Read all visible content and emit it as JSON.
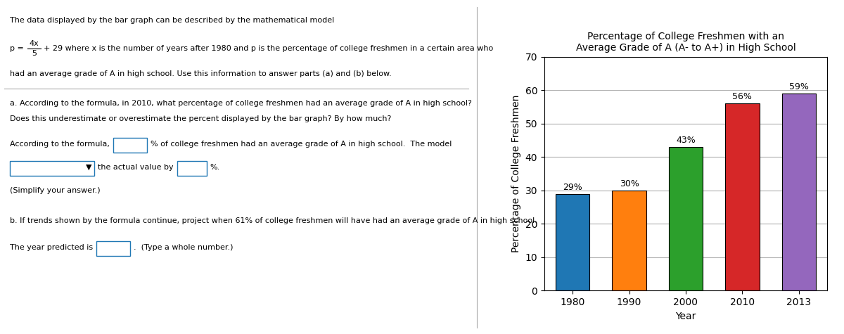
{
  "chart_data": {
    "type": "bar",
    "title": "Percentage of College Freshmen with an\nAverage Grade of A (A- to A+) in High School",
    "xlabel": "Year",
    "ylabel": "Percentage of College Freshmen",
    "categories": [
      "1980",
      "1990",
      "2000",
      "2010",
      "2013"
    ],
    "values": [
      29,
      30,
      43,
      56,
      59
    ],
    "value_labels": [
      "29%",
      "30%",
      "43%",
      "56%",
      "59%"
    ],
    "data_labels": true,
    "ylim": [
      0,
      70
    ],
    "yticks": [
      0,
      10,
      20,
      30,
      40,
      50,
      60,
      70
    ],
    "grid": true,
    "annotations": [
      "The data displayed by the bar graph can be described by the mathematical model",
      "p =",
      "4x",
      "5",
      "+ 29 where x is the number of years after 1980 and p is the percentage of college freshmen in a certain area who",
      "had an average grade of A in high school. Use this information to answer parts (a) and (b) below.",
      "a. According to the formula, in 2010, what percentage of college freshmen had an average grade of A in high school?",
      "Does this underestimate or overestimate the percent displayed by the bar graph? By how much?",
      "According to the formula,",
      "% of college freshmen had an average grade of A in high school.  The model",
      "▼",
      "the actual value by",
      "%.",
      "(Simplify your answer.)",
      "b. If trends shown by the formula continue, project when 61% of college freshmen will have had an average grade of A in high school.",
      "The year predicted is",
      ".  (Type a whole number.)"
    ]
  }
}
